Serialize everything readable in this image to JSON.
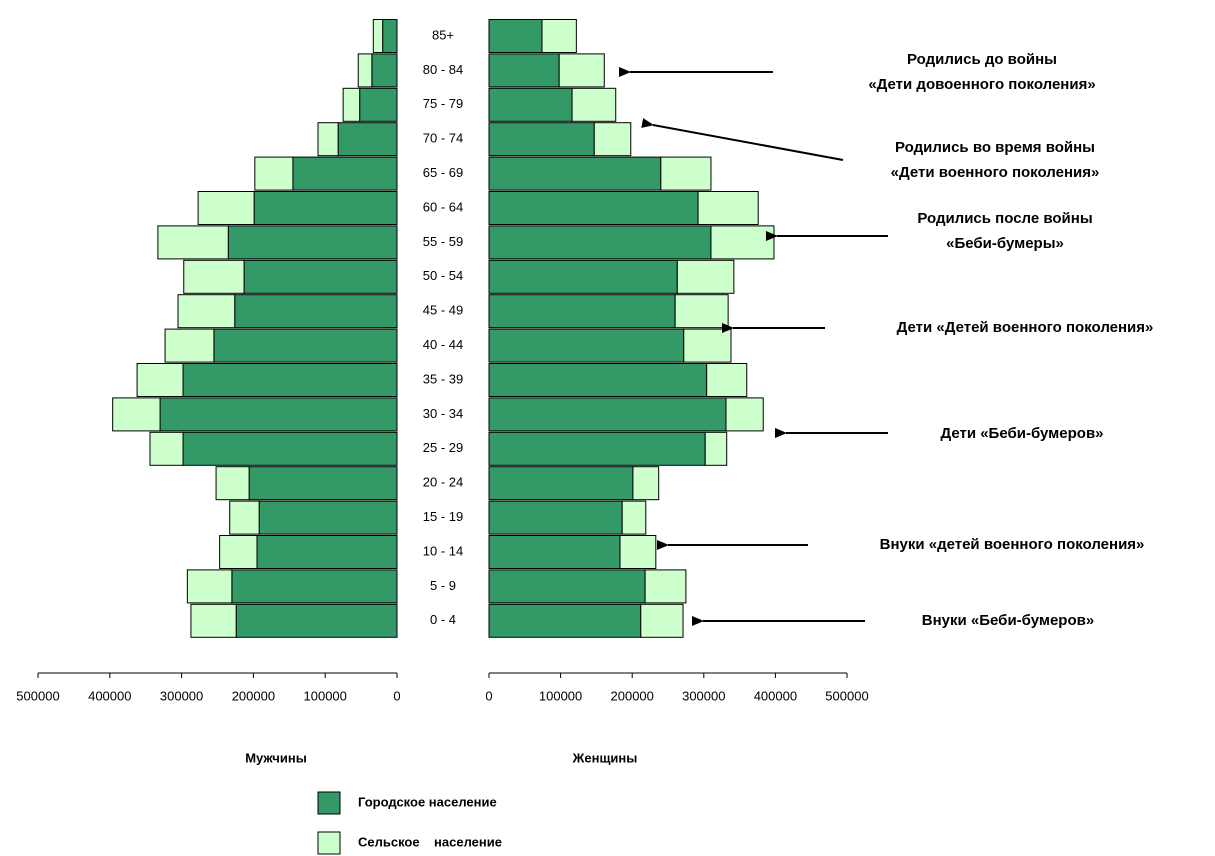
{
  "chart_data": {
    "type": "pyramid",
    "categories": [
      "85+",
      "80 - 84",
      "75 - 79",
      "70 - 74",
      "65 - 69",
      "60 - 64",
      "55 - 59",
      "50 - 54",
      "45 - 49",
      "40 - 44",
      "35 - 39",
      "30 - 34",
      "25 - 29",
      "20 - 24",
      "15 - 19",
      "10 - 14",
      "5 - 9",
      "0 - 4"
    ],
    "series": [
      {
        "name": "Городское население",
        "color": "#339966",
        "male": [
          20000,
          35000,
          52000,
          82000,
          145000,
          199000,
          235000,
          213000,
          226000,
          255000,
          298000,
          330000,
          298000,
          206000,
          192000,
          195000,
          230000,
          224000
        ],
        "female": [
          74000,
          98000,
          116000,
          147000,
          240000,
          292000,
          310000,
          263000,
          260000,
          272000,
          304000,
          331000,
          302000,
          201000,
          186000,
          183000,
          218000,
          212000
        ]
      },
      {
        "name": "Сельское    население",
        "color": "#ccffcc",
        "male": [
          13000,
          19000,
          23000,
          28000,
          53000,
          78000,
          98000,
          84000,
          79000,
          68000,
          64000,
          66000,
          46000,
          46000,
          41000,
          52000,
          62000,
          63000
        ],
        "female": [
          48000,
          63000,
          61000,
          51000,
          70000,
          84000,
          88000,
          79000,
          74000,
          66000,
          56000,
          52000,
          30000,
          36000,
          33000,
          50000,
          57000,
          59000
        ]
      }
    ],
    "male_label": "Мужчины",
    "female_label": "Женщины",
    "xlim": [
      0,
      500000
    ],
    "xticks": [
      0,
      100000,
      200000,
      300000,
      400000,
      500000
    ],
    "annotations": [
      [
        "Родились до войны",
        "«Дети довоенного поколения»"
      ],
      [
        "Родились во время войны",
        "«Дети военного поколения»"
      ],
      [
        "Родились после войны",
        "«Беби-бумеры»"
      ],
      [
        "Дети «Детей военного поколения»"
      ],
      [
        "Дети «Беби-бумеров»"
      ],
      [
        "Внуки «детей военного поколения»"
      ],
      [
        "Внуки «Беби-бумеров»"
      ]
    ]
  }
}
